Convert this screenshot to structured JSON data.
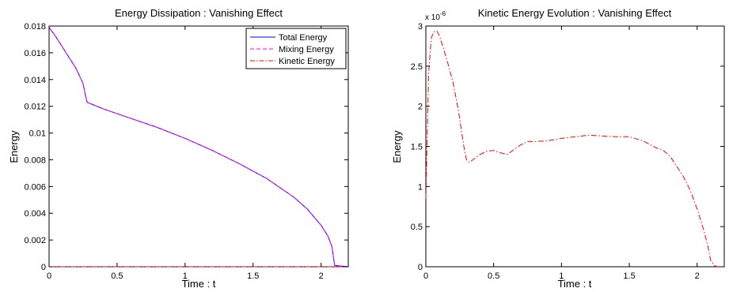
{
  "chart_data": [
    {
      "type": "line",
      "title": "Energy Dissipation : Vanishing Effect",
      "xlabel": "Time : t",
      "ylabel": "Energy",
      "xlim": [
        0,
        2.2
      ],
      "ylim": [
        0,
        0.018
      ],
      "xticks": [
        0,
        0.5,
        1,
        1.5,
        2
      ],
      "xtick_labels": [
        "0",
        "0.5",
        "1",
        "1.5",
        "2"
      ],
      "yticks": [
        0,
        0.002,
        0.004,
        0.006,
        0.008,
        0.01,
        0.012,
        0.014,
        0.016,
        0.018
      ],
      "ytick_labels": [
        "0",
        "0.002",
        "0.004",
        "0.006",
        "0.008",
        "0.01",
        "0.012",
        "0.014",
        "0.016",
        "0.018"
      ],
      "grid": false,
      "legend_position": "top-right",
      "series": [
        {
          "name": "Total Energy",
          "color": "#0000ff",
          "style": "solid",
          "x": [
            0,
            0.05,
            0.1,
            0.15,
            0.2,
            0.25,
            0.27,
            0.28,
            0.4,
            0.6,
            0.8,
            1.0,
            1.2,
            1.4,
            1.6,
            1.8,
            1.9,
            2.0,
            2.05,
            2.08,
            2.1,
            2.2
          ],
          "y": [
            0.0179,
            0.0172,
            0.0164,
            0.0156,
            0.0148,
            0.0137,
            0.0127,
            0.0123,
            0.0118,
            0.0111,
            0.0104,
            0.0096,
            0.0087,
            0.0077,
            0.0066,
            0.0052,
            0.0043,
            0.0031,
            0.0023,
            0.0015,
            0.0001,
            0.0
          ]
        },
        {
          "name": "Mixing Energy",
          "color": "#ff00ff",
          "style": "dashed",
          "x": [
            0,
            0.05,
            0.1,
            0.15,
            0.2,
            0.25,
            0.27,
            0.28,
            0.4,
            0.6,
            0.8,
            1.0,
            1.2,
            1.4,
            1.6,
            1.8,
            1.9,
            2.0,
            2.05,
            2.08,
            2.1,
            2.2
          ],
          "y": [
            0.0179,
            0.0172,
            0.0164,
            0.0156,
            0.0148,
            0.0137,
            0.0127,
            0.0123,
            0.0118,
            0.0111,
            0.0104,
            0.0096,
            0.0087,
            0.0077,
            0.0066,
            0.0052,
            0.0043,
            0.0031,
            0.0023,
            0.0015,
            0.0001,
            0.0
          ]
        },
        {
          "name": "Kinetic Energy",
          "color": "#ff0000",
          "style": "dashdot",
          "x": [
            0,
            2.2
          ],
          "y": [
            0,
            0
          ]
        }
      ]
    },
    {
      "type": "line",
      "title": "Kinetic Energy Evolution : Vanishing Effect",
      "xlabel": "Time : t",
      "ylabel": "Energy",
      "exponent_label": "x 10",
      "exponent_power": "-6",
      "xlim": [
        0,
        2.2
      ],
      "ylim": [
        0,
        3
      ],
      "xticks": [
        0,
        0.5,
        1,
        1.5,
        2
      ],
      "xtick_labels": [
        "0",
        "0.5",
        "1",
        "1.5",
        "2"
      ],
      "yticks": [
        0,
        0.5,
        1,
        1.5,
        2,
        2.5,
        3
      ],
      "ytick_labels": [
        "0",
        "0.5",
        "1",
        "1.5",
        "2",
        "2.5",
        "3"
      ],
      "grid": false,
      "series": [
        {
          "color": "#ff0000",
          "style": "dashdot",
          "x": [
            0,
            0.02,
            0.04,
            0.06,
            0.08,
            0.1,
            0.13,
            0.16,
            0.2,
            0.24,
            0.28,
            0.3,
            0.32,
            0.36,
            0.4,
            0.45,
            0.5,
            0.55,
            0.6,
            0.65,
            0.7,
            0.75,
            0.8,
            0.9,
            1.0,
            1.1,
            1.2,
            1.3,
            1.4,
            1.5,
            1.6,
            1.7,
            1.75,
            1.8,
            1.85,
            1.9,
            1.95,
            2.0,
            2.05,
            2.08,
            2.1,
            2.13,
            2.15
          ],
          "y": [
            0.85,
            2.4,
            2.85,
            2.93,
            2.94,
            2.88,
            2.72,
            2.55,
            2.3,
            1.95,
            1.5,
            1.33,
            1.3,
            1.35,
            1.4,
            1.44,
            1.45,
            1.42,
            1.4,
            1.46,
            1.52,
            1.56,
            1.56,
            1.57,
            1.6,
            1.62,
            1.64,
            1.63,
            1.62,
            1.62,
            1.57,
            1.48,
            1.45,
            1.38,
            1.25,
            1.12,
            0.95,
            0.72,
            0.45,
            0.25,
            0.08,
            0.01,
            0.0
          ]
        }
      ]
    }
  ]
}
